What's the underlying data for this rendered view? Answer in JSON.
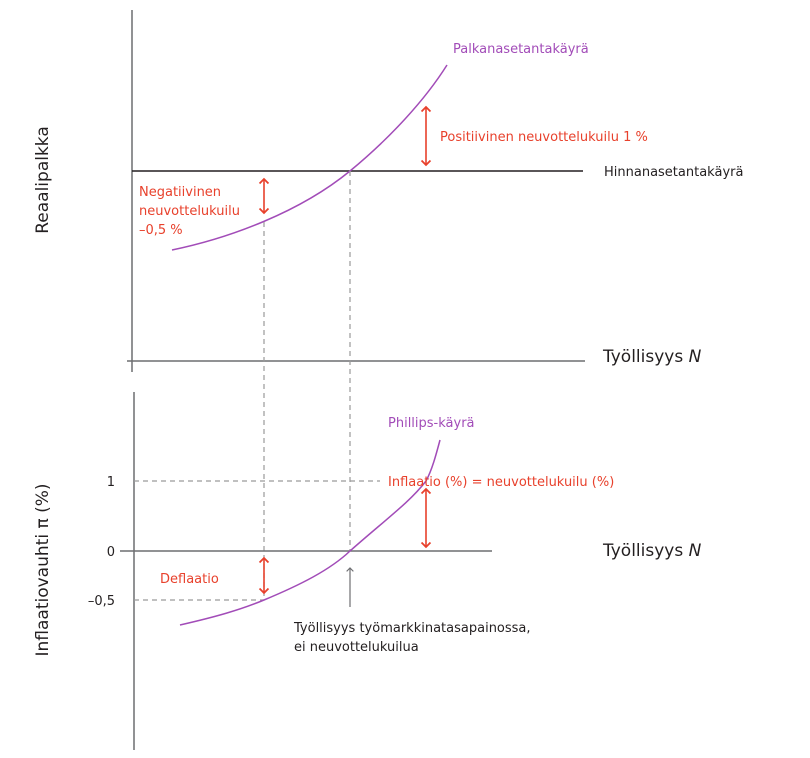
{
  "colors": {
    "curve": "#a24cb8",
    "annotation": "#e8412c",
    "axis": "#6d6e71",
    "text": "#231f20"
  },
  "top_panel": {
    "ylabel": "Reaalipalkka",
    "xlabel": "Työllisyys",
    "xlabel_var": "N",
    "wage_curve_label": "Palkanasetantakäyrä",
    "price_curve_label": "Hinnanasetantakäyrä",
    "positive_gap": "Positiivinen neuvottelukuilu 1 %",
    "negative_gap_lines": [
      "Negatiivinen",
      "neuvottelukuilu",
      "–0,5 %"
    ]
  },
  "bottom_panel": {
    "ylabel": "Inflaatiovauhti π (%)",
    "xlabel": "Työllisyys",
    "xlabel_var": "N",
    "ticks": [
      "1",
      "0",
      "–0,5"
    ],
    "phillips_label": "Phillips-käyrä",
    "inflation_note": "Inflaatio (%) = neuvottelukuilu (%)",
    "deflation": "Deflaatio",
    "equilibrium_note_lines": [
      "Työllisyys työmarkkinatasapainossa,",
      "ei neuvottelukuilua"
    ]
  }
}
